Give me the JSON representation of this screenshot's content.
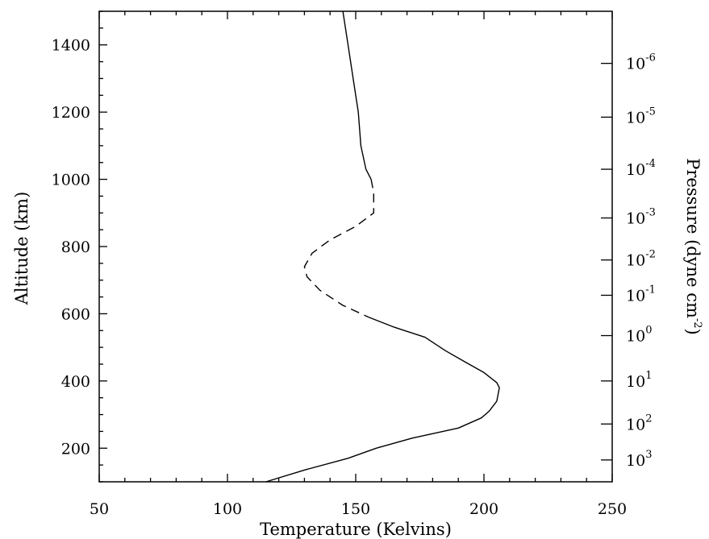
{
  "chart_data": {
    "type": "line",
    "xlabel": "Temperature (Kelvins)",
    "ylabel": "Altitude (km)",
    "y2label": "Pressure (dyne cm",
    "y2label_exponent": "-2",
    "y2label_suffix": ")",
    "xlim": [
      50,
      250
    ],
    "ylim": [
      100,
      1500
    ],
    "x_ticks": [
      50,
      100,
      150,
      200,
      250
    ],
    "y_ticks": [
      200,
      400,
      600,
      800,
      1000,
      1200,
      1400
    ],
    "grid": false,
    "pressure_axis": [
      {
        "base": "10",
        "exponent": "-6",
        "altitude": 1345
      },
      {
        "base": "10",
        "exponent": "-5",
        "altitude": 1185
      },
      {
        "base": "10",
        "exponent": "-4",
        "altitude": 1030
      },
      {
        "base": "10",
        "exponent": "-3",
        "altitude": 885
      },
      {
        "base": "10",
        "exponent": "-2",
        "altitude": 760
      },
      {
        "base": "10",
        "exponent": "-1",
        "altitude": 655
      },
      {
        "base": "10",
        "exponent": "0",
        "altitude": 535
      },
      {
        "base": "10",
        "exponent": "1",
        "altitude": 400
      },
      {
        "base": "10",
        "exponent": "2",
        "altitude": 272
      },
      {
        "base": "10",
        "exponent": "3",
        "altitude": 165
      }
    ],
    "series": [
      {
        "style": "solid",
        "points": [
          [
            145,
            1500
          ],
          [
            147,
            1400
          ],
          [
            149,
            1300
          ],
          [
            151,
            1200
          ],
          [
            152,
            1100
          ],
          [
            154,
            1030
          ],
          [
            156,
            1000
          ]
        ]
      },
      {
        "style": "dashed",
        "points": [
          [
            156,
            1000
          ],
          [
            157,
            960
          ],
          [
            157,
            900
          ],
          [
            150,
            860
          ],
          [
            140,
            820
          ],
          [
            133,
            780
          ],
          [
            130,
            740
          ],
          [
            131,
            710
          ],
          [
            136,
            670
          ],
          [
            145,
            625
          ],
          [
            155,
            590
          ]
        ]
      },
      {
        "style": "solid",
        "points": [
          [
            155,
            590
          ],
          [
            165,
            560
          ],
          [
            177,
            530
          ],
          [
            185,
            490
          ],
          [
            193,
            455
          ],
          [
            200,
            425
          ],
          [
            205,
            395
          ],
          [
            206,
            380
          ],
          [
            205,
            340
          ],
          [
            202,
            310
          ],
          [
            199,
            290
          ],
          [
            190,
            260
          ],
          [
            172,
            230
          ],
          [
            158,
            200
          ],
          [
            147,
            170
          ],
          [
            130,
            135
          ],
          [
            115,
            100
          ]
        ]
      }
    ]
  }
}
